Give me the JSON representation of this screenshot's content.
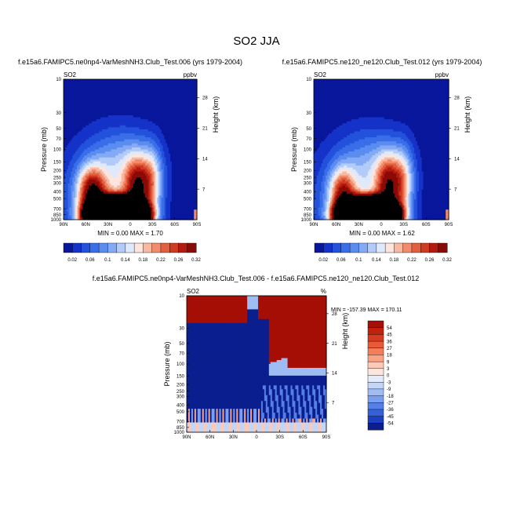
{
  "figure_title": "SO2 JJA",
  "chart_data": [
    {
      "type": "heatmap",
      "subtitle": "f.e15a6.FAMIPC5.ne0np4-VarMeshNH3.Club_Test.006 (yrs 1979-2004)",
      "left_label": "SO2",
      "right_label": "ppbv",
      "ylabel": "Pressure (mb)",
      "y2label": "Height (km)",
      "x_ticks": [
        "90N",
        "60N",
        "30N",
        "0",
        "30S",
        "60S",
        "90S"
      ],
      "y_ticks": [
        "10",
        "30",
        "50",
        "70",
        "100",
        "150",
        "200",
        "250",
        "300",
        "400",
        "500",
        "700",
        "850",
        "1000"
      ],
      "y2_ticks": [
        "28",
        "21",
        "14",
        "7"
      ],
      "stats": "MIN =   0.00  MAX =   1.70",
      "colorbar": {
        "labels": [
          "0.02",
          "0.06",
          "0.1",
          "0.14",
          "0.18",
          "0.22",
          "0.26",
          "0.32"
        ],
        "colors": [
          "#08179c",
          "#1533c8",
          "#2352dc",
          "#3a6ee8",
          "#5b8cf0",
          "#84aaf5",
          "#b2cbf9",
          "#dfe9fc",
          "#fde5dd",
          "#f8b9a3",
          "#f08c6c",
          "#e3603f",
          "#cf3a20",
          "#b31a10",
          "#8c0a06"
        ]
      },
      "levels": [
        0.02,
        0.04,
        0.06,
        0.08,
        0.1,
        0.12,
        0.14,
        0.16,
        0.18,
        0.2,
        0.22,
        0.24,
        0.26,
        0.28,
        0.32
      ],
      "features": [
        {
          "lat": 18,
          "p": 900,
          "amp": 3.2,
          "slat": 20,
          "slog": 0.13
        },
        {
          "lat": 52,
          "p": 420,
          "amp": 0.24,
          "slat": 13,
          "slog": 0.25
        },
        {
          "lat": 30,
          "p": 500,
          "amp": 0.12,
          "slat": 40,
          "slog": 0.55
        },
        {
          "lat": -10,
          "p": 350,
          "amp": 0.22,
          "slat": 12,
          "slog": 0.3
        },
        {
          "lat": -30,
          "p": 300,
          "amp": 0.12,
          "slat": 10,
          "slog": 0.35
        },
        {
          "lat": -5,
          "p": 830,
          "amp": 0.2,
          "slat": 6,
          "slog": 0.1
        },
        {
          "lat": 5,
          "p": 150,
          "amp": 0.06,
          "slat": 30,
          "slog": 0.35
        }
      ]
    },
    {
      "type": "heatmap",
      "subtitle": "f.e15a6.FAMIPC5.ne120_ne120.Club_Test.012 (yrs 1979-2004)",
      "left_label": "SO2",
      "right_label": "ppbv",
      "ylabel": "Pressure (mb)",
      "y2label": "Height (km)",
      "x_ticks": [
        "90N",
        "60N",
        "30N",
        "0",
        "30S",
        "60S",
        "90S"
      ],
      "y_ticks": [
        "10",
        "30",
        "50",
        "70",
        "100",
        "150",
        "200",
        "250",
        "300",
        "400",
        "500",
        "700",
        "850",
        "1000"
      ],
      "y2_ticks": [
        "28",
        "21",
        "14",
        "7"
      ],
      "stats": "MIN =   0.00  MAX =   1.62",
      "colorbar": {
        "labels": [
          "0.02",
          "0.06",
          "0.1",
          "0.14",
          "0.18",
          "0.22",
          "0.26",
          "0.32"
        ],
        "colors": [
          "#08179c",
          "#1533c8",
          "#2352dc",
          "#3a6ee8",
          "#5b8cf0",
          "#84aaf5",
          "#b2cbf9",
          "#dfe9fc",
          "#fde5dd",
          "#f8b9a3",
          "#f08c6c",
          "#e3603f",
          "#cf3a20",
          "#b31a10",
          "#8c0a06"
        ]
      },
      "levels": [
        0.02,
        0.04,
        0.06,
        0.08,
        0.1,
        0.12,
        0.14,
        0.16,
        0.18,
        0.2,
        0.22,
        0.24,
        0.26,
        0.28,
        0.32
      ],
      "features": [
        {
          "lat": 18,
          "p": 900,
          "amp": 3.0,
          "slat": 20,
          "slog": 0.13
        },
        {
          "lat": 52,
          "p": 440,
          "amp": 0.2,
          "slat": 12,
          "slog": 0.25
        },
        {
          "lat": 30,
          "p": 500,
          "amp": 0.11,
          "slat": 40,
          "slog": 0.55
        },
        {
          "lat": -10,
          "p": 330,
          "amp": 0.22,
          "slat": 12,
          "slog": 0.3
        },
        {
          "lat": -30,
          "p": 300,
          "amp": 0.12,
          "slat": 10,
          "slog": 0.35
        },
        {
          "lat": -5,
          "p": 830,
          "amp": 0.18,
          "slat": 6,
          "slog": 0.1
        },
        {
          "lat": 5,
          "p": 150,
          "amp": 0.05,
          "slat": 30,
          "slog": 0.35
        }
      ]
    },
    {
      "type": "heatmap",
      "subtitle": "f.e15a6.FAMIPC5.ne0np4-VarMeshNH3.Club_Test.006 - f.e15a6.FAMIPC5.ne120_ne120.Club_Test.012",
      "left_label": "SO2",
      "right_label": "%",
      "ylabel": "Pressure (mb)",
      "y2label": "Height (km)",
      "x_ticks": [
        "90N",
        "60N",
        "30N",
        "0",
        "30S",
        "60S",
        "90S"
      ],
      "y_ticks": [
        "10",
        "30",
        "50",
        "70",
        "100",
        "150",
        "200",
        "250",
        "300",
        "400",
        "500",
        "700",
        "850",
        "1000"
      ],
      "y2_ticks": [
        "28",
        "21",
        "14",
        "7"
      ],
      "stats": "MIN = -157.39  MAX = 170.11",
      "colorbar": {
        "labels": [
          "54",
          "45",
          "36",
          "27",
          "18",
          "9",
          "3",
          "0",
          "-3",
          "-9",
          "-18",
          "-27",
          "-36",
          "-45",
          "-54"
        ],
        "colors": [
          "#a50f05",
          "#c0220d",
          "#d83a1f",
          "#e95a3a",
          "#f47d5c",
          "#f9a386",
          "#fccab6",
          "#fee6dc",
          "#e3ecfb",
          "#c4d6f8",
          "#9fbcf3",
          "#7a9ff0",
          "#5680e6",
          "#3461d9",
          "#1c40c2",
          "#0a1e8e"
        ]
      },
      "levels": [
        -54,
        -45,
        -36,
        -27,
        -18,
        -9,
        -3,
        0,
        3,
        9,
        18,
        27,
        36,
        45,
        54
      ]
    }
  ]
}
